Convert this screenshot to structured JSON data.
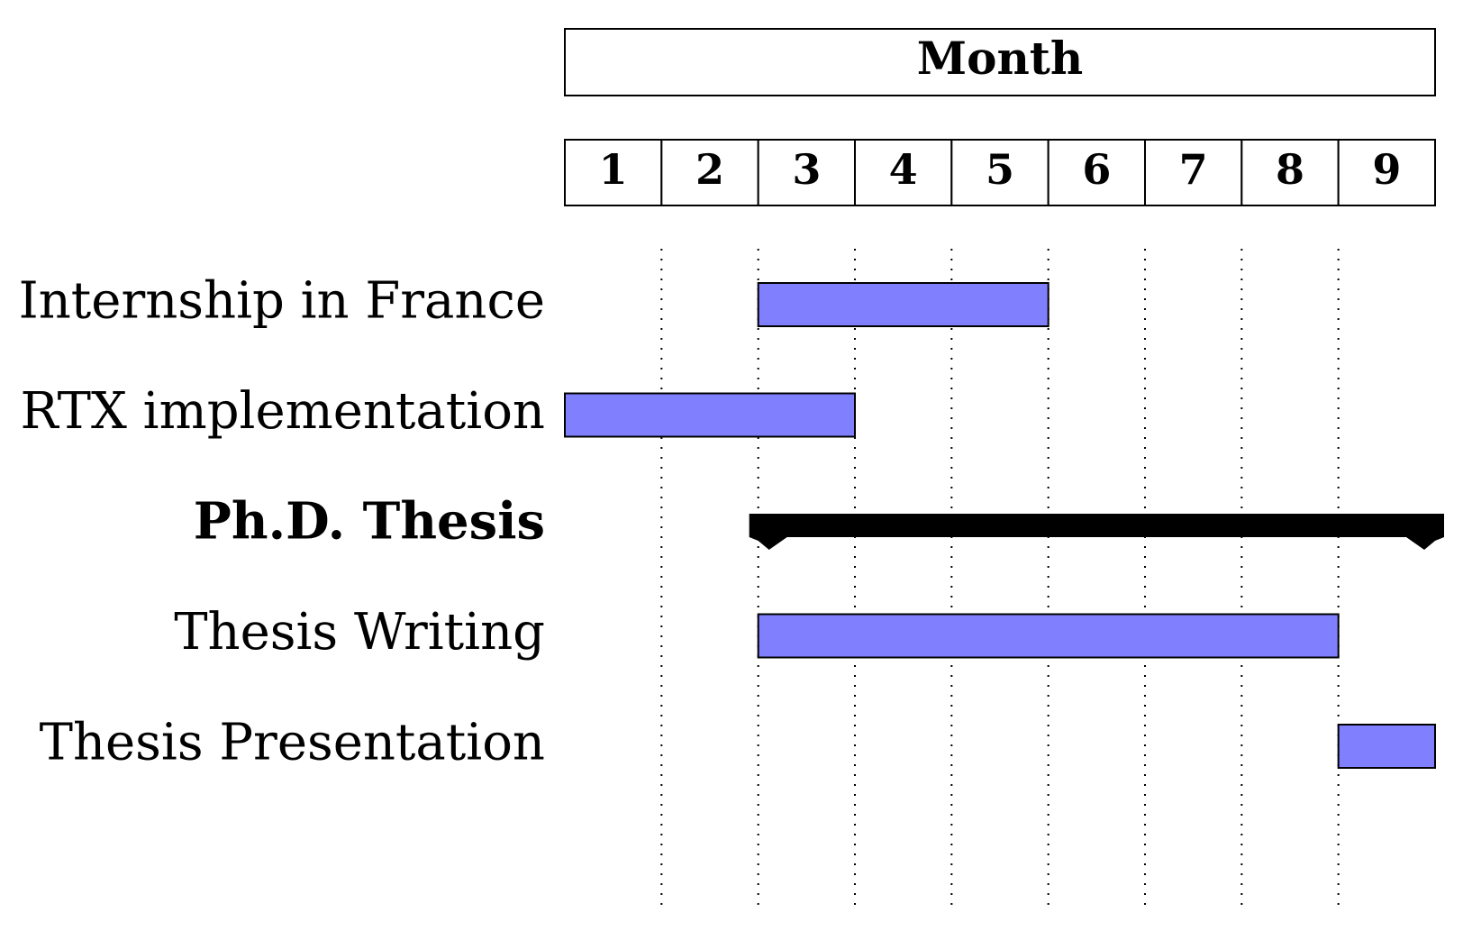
{
  "chart_data": {
    "type": "gantt",
    "title": "Month",
    "months": [
      "1",
      "2",
      "3",
      "4",
      "5",
      "6",
      "7",
      "8",
      "9"
    ],
    "grid": "dotted",
    "colors": {
      "bar_fill": "#8080ff",
      "bar_stroke": "#000000",
      "group_fill": "#000000"
    },
    "tasks": [
      {
        "label": "Internship in France",
        "kind": "bar",
        "start": 3,
        "end": 5
      },
      {
        "label": "RTX implementation",
        "kind": "bar",
        "start": 1,
        "end": 3
      },
      {
        "label": "Ph.D. Thesis",
        "kind": "group",
        "start": 3,
        "end": 9
      },
      {
        "label": "Thesis Writing",
        "kind": "bar",
        "start": 3,
        "end": 8
      },
      {
        "label": "Thesis Presentation",
        "kind": "bar",
        "start": 9,
        "end": 9
      }
    ]
  }
}
